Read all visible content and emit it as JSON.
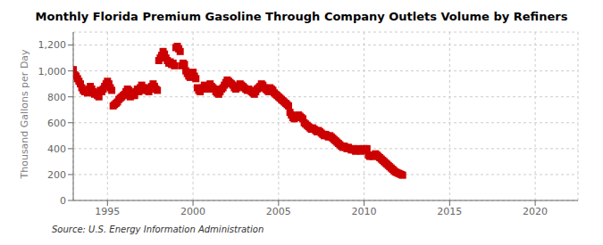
{
  "chart_data": {
    "type": "scatter",
    "title": "Monthly Florida Premium Gasoline Through Company Outlets Volume by Refiners",
    "y_label": "Thousand Gallons per Day",
    "annotations": [
      "Source: U.S. Energy Information Administration"
    ],
    "color": "#cc0000",
    "marker": "square",
    "grid": true,
    "xlim": [
      1993.0,
      2022.5
    ],
    "ylim": [
      0,
      1300
    ],
    "xticks": [
      1995,
      2000,
      2005,
      2010,
      2015,
      2020
    ],
    "yticks": [
      0,
      200,
      400,
      600,
      800,
      {
        "value": 1000,
        "label": "1,000"
      },
      {
        "value": 1200,
        "label": "1,200"
      }
    ],
    "x": [
      1993.0,
      1993.083,
      1993.167,
      1993.25,
      1993.333,
      1993.417,
      1993.5,
      1993.583,
      1993.667,
      1993.75,
      1993.833,
      1993.917,
      1994.0,
      1994.083,
      1994.167,
      1994.25,
      1994.333,
      1994.417,
      1994.5,
      1994.583,
      1994.667,
      1994.75,
      1994.833,
      1994.917,
      1995.0,
      1995.083,
      1995.167,
      1995.25,
      1995.333,
      1995.417,
      1995.5,
      1995.583,
      1995.667,
      1995.75,
      1995.833,
      1995.917,
      1996.0,
      1996.083,
      1996.167,
      1996.25,
      1996.333,
      1996.417,
      1996.5,
      1996.583,
      1996.667,
      1996.75,
      1996.833,
      1996.917,
      1997.0,
      1997.083,
      1997.167,
      1997.25,
      1997.333,
      1997.417,
      1997.5,
      1997.583,
      1997.667,
      1997.75,
      1997.833,
      1997.917,
      1998.0,
      1998.083,
      1998.167,
      1998.25,
      1998.333,
      1998.417,
      1998.5,
      1998.583,
      1998.667,
      1998.75,
      1998.833,
      1998.917,
      1999.0,
      1999.083,
      1999.167,
      1999.25,
      1999.333,
      1999.417,
      1999.5,
      1999.583,
      1999.667,
      1999.75,
      1999.833,
      1999.917,
      2000.0,
      2000.083,
      2000.167,
      2000.25,
      2000.333,
      2000.417,
      2000.5,
      2000.583,
      2000.667,
      2000.75,
      2000.833,
      2000.917,
      2001.0,
      2001.083,
      2001.167,
      2001.25,
      2001.333,
      2001.417,
      2001.5,
      2001.583,
      2001.667,
      2001.75,
      2001.833,
      2001.917,
      2002.0,
      2002.083,
      2002.167,
      2002.25,
      2002.333,
      2002.417,
      2002.5,
      2002.583,
      2002.667,
      2002.75,
      2002.833,
      2002.917,
      2003.0,
      2003.083,
      2003.167,
      2003.25,
      2003.333,
      2003.417,
      2003.5,
      2003.583,
      2003.667,
      2003.75,
      2003.833,
      2003.917,
      2004.0,
      2004.083,
      2004.167,
      2004.25,
      2004.333,
      2004.417,
      2004.5,
      2004.583,
      2004.667,
      2004.75,
      2004.833,
      2004.917,
      2005.0,
      2005.083,
      2005.167,
      2005.25,
      2005.333,
      2005.417,
      2005.5,
      2005.583,
      2005.667,
      2005.75,
      2005.833,
      2005.917,
      2006.0,
      2006.083,
      2006.167,
      2006.25,
      2006.333,
      2006.417,
      2006.5,
      2006.583,
      2006.667,
      2006.75,
      2006.833,
      2006.917,
      2007.0,
      2007.083,
      2007.167,
      2007.25,
      2007.333,
      2007.417,
      2007.5,
      2007.583,
      2007.667,
      2007.75,
      2007.833,
      2007.917,
      2008.0,
      2008.083,
      2008.167,
      2008.25,
      2008.333,
      2008.417,
      2008.5,
      2008.583,
      2008.667,
      2008.75,
      2008.833,
      2008.917,
      2009.0,
      2009.083,
      2009.167,
      2009.25,
      2009.333,
      2009.417,
      2009.5,
      2009.583,
      2009.667,
      2009.75,
      2009.833,
      2009.917,
      2010.0,
      2010.083,
      2010.167,
      2010.25,
      2010.333,
      2010.417,
      2010.5,
      2010.583,
      2010.667,
      2010.75,
      2010.833,
      2010.917,
      2011.0,
      2011.083,
      2011.167,
      2011.25,
      2011.333,
      2011.417,
      2011.5,
      2011.583,
      2011.667,
      2011.75,
      2011.833,
      2011.917,
      2012.0,
      2012.083,
      2012.167,
      2012.25
    ],
    "values": [
      1010,
      970,
      960,
      940,
      920,
      900,
      870,
      850,
      840,
      850,
      830,
      860,
      880,
      860,
      840,
      820,
      830,
      810,
      800,
      850,
      840,
      860,
      880,
      900,
      920,
      900,
      870,
      850,
      730,
      740,
      750,
      760,
      780,
      790,
      800,
      810,
      820,
      840,
      860,
      850,
      800,
      810,
      830,
      810,
      840,
      860,
      840,
      870,
      890,
      870,
      850,
      870,
      850,
      840,
      860,
      880,
      900,
      880,
      860,
      850,
      1080,
      1100,
      1120,
      1150,
      1130,
      1100,
      1080,
      1060,
      1070,
      1050,
      1060,
      1040,
      1180,
      1190,
      1170,
      1150,
      1040,
      1060,
      1050,
      1000,
      980,
      960,
      950,
      970,
      990,
      960,
      940,
      870,
      850,
      840,
      860,
      870,
      890,
      880,
      860,
      870,
      900,
      880,
      870,
      860,
      840,
      830,
      820,
      840,
      860,
      870,
      890,
      910,
      930,
      920,
      910,
      900,
      890,
      870,
      860,
      870,
      880,
      900,
      890,
      880,
      870,
      860,
      850,
      860,
      850,
      840,
      830,
      820,
      840,
      860,
      870,
      880,
      900,
      890,
      870,
      860,
      850,
      840,
      870,
      860,
      850,
      830,
      820,
      810,
      800,
      790,
      780,
      770,
      760,
      750,
      740,
      730,
      680,
      660,
      640,
      630,
      640,
      650,
      660,
      650,
      640,
      630,
      600,
      590,
      580,
      570,
      560,
      550,
      560,
      550,
      540,
      530,
      540,
      530,
      520,
      510,
      500,
      510,
      500,
      490,
      500,
      490,
      480,
      470,
      460,
      450,
      440,
      430,
      420,
      410,
      420,
      410,
      400,
      410,
      400,
      390,
      400,
      390,
      380,
      390,
      400,
      390,
      380,
      390,
      400,
      390,
      400,
      350,
      340,
      350,
      340,
      350,
      360,
      350,
      340,
      330,
      320,
      310,
      300,
      290,
      280,
      270,
      260,
      250,
      240,
      230,
      220,
      215,
      210,
      205,
      200,
      195
    ]
  }
}
